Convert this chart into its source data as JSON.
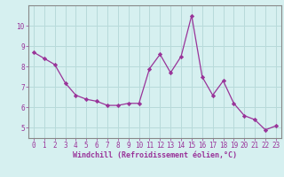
{
  "x": [
    0,
    1,
    2,
    3,
    4,
    5,
    6,
    7,
    8,
    9,
    10,
    11,
    12,
    13,
    14,
    15,
    16,
    17,
    18,
    19,
    20,
    21,
    22,
    23
  ],
  "y": [
    8.7,
    8.4,
    8.1,
    7.2,
    6.6,
    6.4,
    6.3,
    6.1,
    6.1,
    6.2,
    6.2,
    7.9,
    8.6,
    7.7,
    8.5,
    10.5,
    7.5,
    6.6,
    7.3,
    6.2,
    5.6,
    5.4,
    4.9,
    5.1
  ],
  "line_color": "#993399",
  "marker": "D",
  "marker_size": 2.2,
  "bg_color": "#d6f0f0",
  "grid_color": "#b8dada",
  "xlabel": "Windchill (Refroidissement éolien,°C)",
  "ylim": [
    4.5,
    11.0
  ],
  "yticks": [
    5,
    6,
    7,
    8,
    9,
    10
  ],
  "spine_color": "#888888",
  "label_color": "#993399",
  "tick_fontsize": 5.5,
  "xlabel_fontsize": 6.0
}
